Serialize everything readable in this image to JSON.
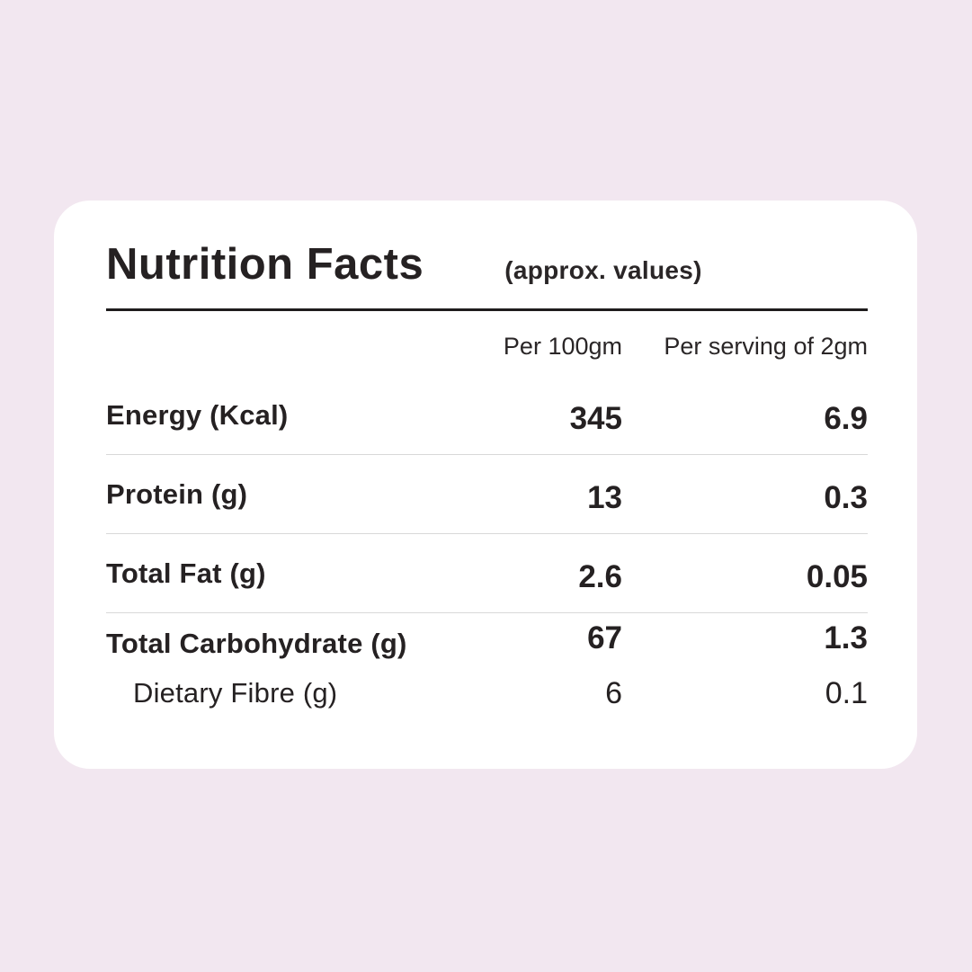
{
  "page": {
    "background_color": "#F2E7F0",
    "card_background_color": "#FFFFFF",
    "text_color": "#252122",
    "rule_color": "#1F1C1D",
    "divider_color": "#D8D8D8"
  },
  "label": {
    "title": "Nutrition Facts",
    "subtitle": "(approx. values)",
    "columns": {
      "per_100gm": "Per 100gm",
      "per_serving": "Per serving of 2gm"
    },
    "rows": [
      {
        "name": "Energy (Kcal)",
        "per_100gm": "345",
        "per_serving": "6.9"
      },
      {
        "name": "Protein (g)",
        "per_100gm": "13",
        "per_serving": "0.3"
      },
      {
        "name": "Total Fat (g)",
        "per_100gm": "2.6",
        "per_serving": "0.05"
      },
      {
        "name": "Total Carbohydrate (g)",
        "per_100gm": "67",
        "per_serving": "1.3"
      },
      {
        "name": "Dietary Fibre (g)",
        "per_100gm": "6",
        "per_serving": "0.1"
      }
    ]
  }
}
